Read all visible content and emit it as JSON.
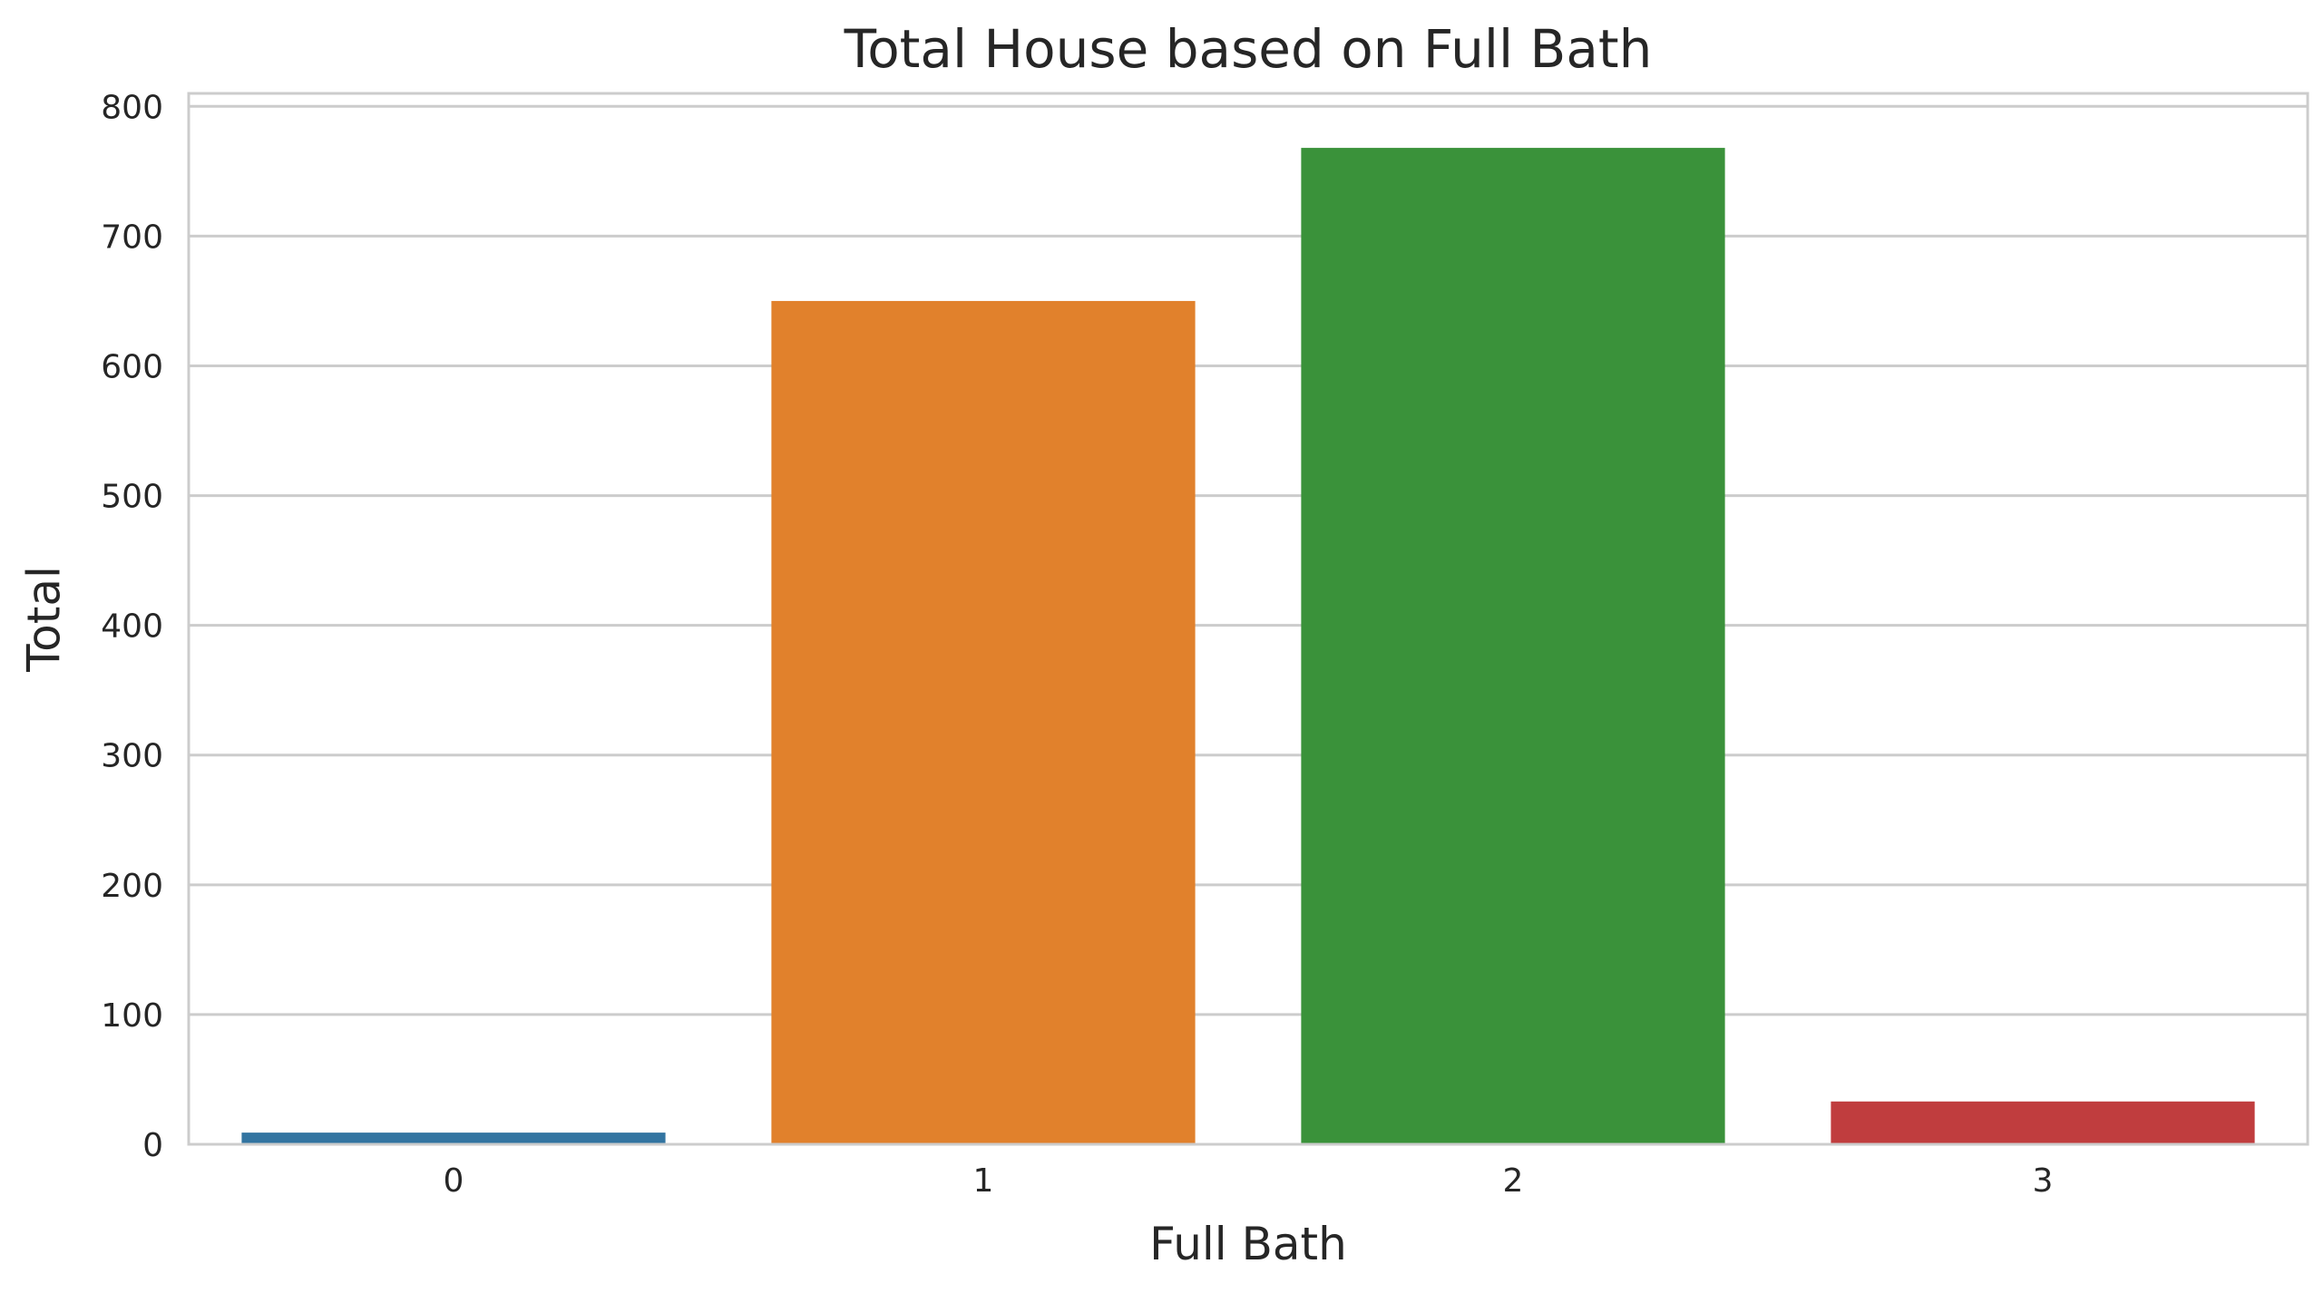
{
  "chart_data": {
    "type": "bar",
    "title": "Total House based on Full Bath",
    "xlabel": "Full Bath",
    "ylabel": "Total",
    "categories": [
      "0",
      "1",
      "2",
      "3"
    ],
    "values": [
      9,
      650,
      768,
      33
    ],
    "colors": [
      "#3274a1",
      "#e1812c",
      "#3a923a",
      "#c03d3e"
    ],
    "ylim": [
      0,
      810
    ],
    "yticks": [
      0,
      100,
      200,
      300,
      400,
      500,
      600,
      700,
      800
    ],
    "grid": true,
    "legend": "none"
  }
}
